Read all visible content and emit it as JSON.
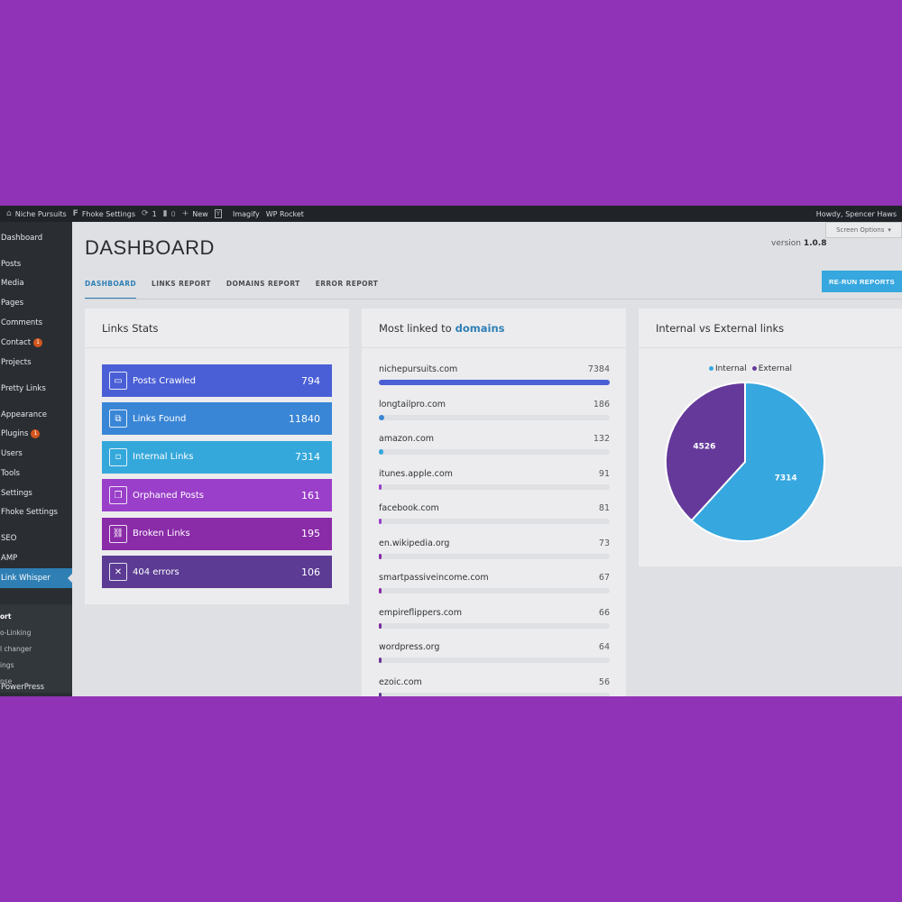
{
  "adminbar": {
    "site_name": "Niche Pursuits",
    "fhoke_settings": "Fhoke Settings",
    "updates_count": "1",
    "comments_count": "0",
    "new_label": "New",
    "imagify": "Imagify",
    "wp_rocket": "WP Rocket",
    "howdy": "Howdy, Spencer Haws"
  },
  "sidebar": {
    "items": [
      {
        "label": "Dashboard"
      },
      {
        "label": "Posts"
      },
      {
        "label": "Media"
      },
      {
        "label": "Pages"
      },
      {
        "label": "Comments"
      },
      {
        "label": "Contact",
        "badge": "1"
      },
      {
        "label": "Projects"
      },
      {
        "label": "Pretty Links"
      },
      {
        "label": "Appearance"
      },
      {
        "label": "Plugins",
        "badge": "1"
      },
      {
        "label": "Users"
      },
      {
        "label": "Tools"
      },
      {
        "label": "Settings"
      },
      {
        "label": "Fhoke Settings"
      },
      {
        "label": "SEO"
      },
      {
        "label": "AMP"
      },
      {
        "label": "Link Whisper"
      },
      {
        "label": "PowerPress"
      }
    ],
    "submenu": [
      "ort",
      "o-Linking",
      "l changer",
      "ings",
      "nse"
    ]
  },
  "header": {
    "title": "DASHBOARD",
    "version_label": "version",
    "version": "1.0.8",
    "screen_options": "Screen Options"
  },
  "tabs": [
    "DASHBOARD",
    "LINKS REPORT",
    "DOMAINS REPORT",
    "ERROR REPORT"
  ],
  "rerun_label": "RE-RUN REPORTS",
  "links_stats": {
    "title": "Links Stats",
    "items": [
      {
        "label": "Posts Crawled",
        "value": "794",
        "color": "#4a5fd6",
        "icon": "browser-icon"
      },
      {
        "label": "Links Found",
        "value": "11840",
        "color": "#3a86d6",
        "icon": "link-icon"
      },
      {
        "label": "Internal Links",
        "value": "7314",
        "color": "#35a8db",
        "icon": "square-icon"
      },
      {
        "label": "Orphaned Posts",
        "value": "161",
        "color": "#9a3fc9",
        "icon": "windows-icon"
      },
      {
        "label": "Broken Links",
        "value": "195",
        "color": "#8a2ba8",
        "icon": "broken-link-icon"
      },
      {
        "label": "404 errors",
        "value": "106",
        "color": "#5b3b93",
        "icon": "x-box-icon"
      }
    ]
  },
  "domains": {
    "title_prefix": "Most linked to",
    "title_highlight": "domains",
    "items": [
      {
        "name": "nichepursuits.com",
        "count": 7384,
        "color": "#4a5fd6"
      },
      {
        "name": "longtailpro.com",
        "count": 186,
        "color": "#3a86d6"
      },
      {
        "name": "amazon.com",
        "count": 132,
        "color": "#35a8db"
      },
      {
        "name": "itunes.apple.com",
        "count": 91,
        "color": "#9a3fc9"
      },
      {
        "name": "facebook.com",
        "count": 81,
        "color": "#9a3fc9"
      },
      {
        "name": "en.wikipedia.org",
        "count": 73,
        "color": "#8a2ba8"
      },
      {
        "name": "smartpassiveincome.com",
        "count": 67,
        "color": "#8a2ba8"
      },
      {
        "name": "empireflippers.com",
        "count": 66,
        "color": "#7a2ba0"
      },
      {
        "name": "wordpress.org",
        "count": 64,
        "color": "#6a3398"
      },
      {
        "name": "ezoic.com",
        "count": 56,
        "color": "#5b3b93"
      }
    ]
  },
  "pie_panel": {
    "title": "Internal vs External links"
  },
  "chart_data": {
    "type": "pie",
    "title": "Internal vs External links",
    "legend_position": "top",
    "series": [
      {
        "name": "Internal",
        "value": 7314,
        "color": "#36a7df"
      },
      {
        "name": "External",
        "value": 4526,
        "color": "#65399a"
      }
    ]
  }
}
